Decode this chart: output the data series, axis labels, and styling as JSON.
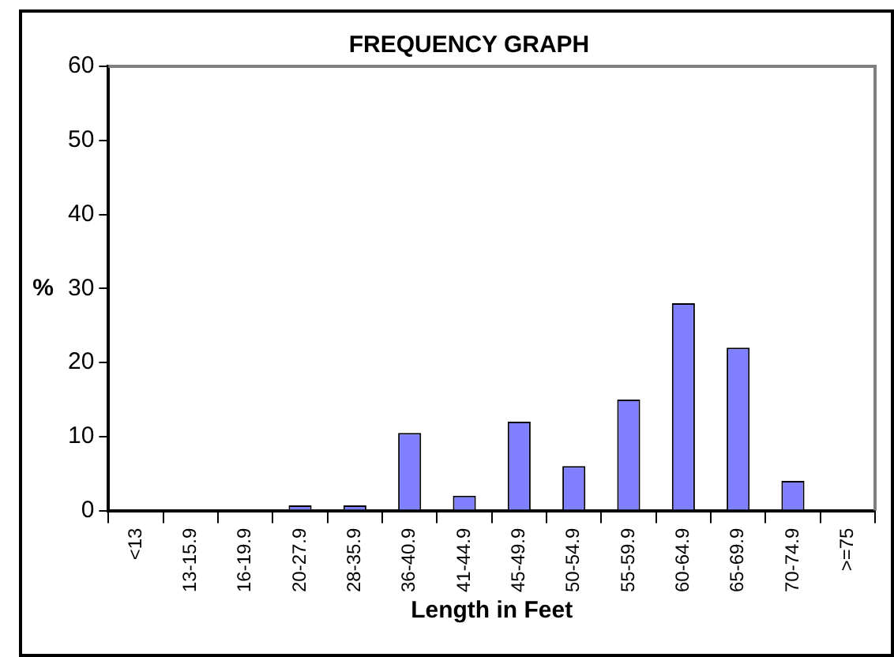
{
  "chart_data": {
    "type": "bar",
    "title": "FREQUENCY GRAPH",
    "xlabel": "Length in Feet",
    "ylabel": "%",
    "categories": [
      "<13",
      "13-15.9",
      "16-19.9",
      "20-27.9",
      "28-35.9",
      "36-40.9",
      "41-44.9",
      "45-49.9",
      "50-54.9",
      "55-59.9",
      "60-64.9",
      "65-69.9",
      "70-74.9",
      ">=75"
    ],
    "values": [
      0,
      0,
      0,
      0.7,
      0.7,
      10.5,
      2,
      12,
      6,
      15,
      28,
      22,
      4,
      0
    ],
    "color": "#8080ff",
    "ylim": [
      0,
      60
    ],
    "yticks": [
      0,
      10,
      20,
      30,
      40,
      50,
      60
    ],
    "grid": false,
    "legend": false
  }
}
